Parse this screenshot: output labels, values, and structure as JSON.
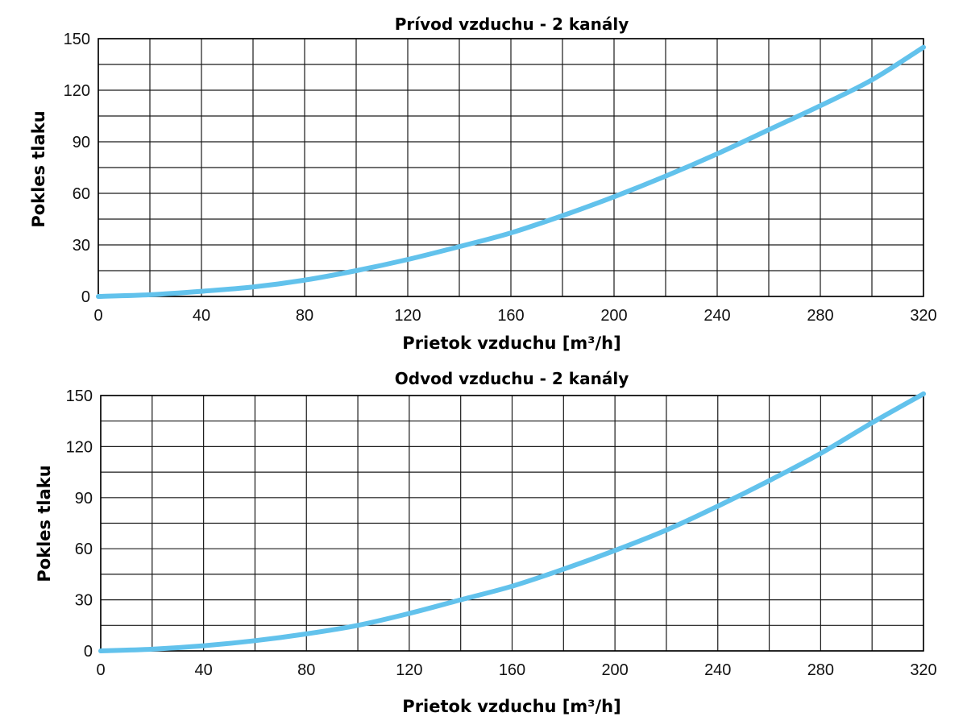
{
  "colors": {
    "curve": "#62c2ec",
    "grid": "#1a1a1a",
    "axis": "#000000"
  },
  "chart_data": [
    {
      "type": "line",
      "title": "Prívod vzduchu - 2 kanály",
      "xlabel": "Prietok vzduchu [m³/h]",
      "ylabel": "Pokles tlaku",
      "xlim": [
        0,
        320
      ],
      "ylim": [
        0,
        150
      ],
      "xticks": [
        0,
        40,
        80,
        120,
        160,
        200,
        240,
        280,
        320
      ],
      "yticks": [
        0,
        30,
        60,
        90,
        120,
        150
      ],
      "grid": true,
      "series": [
        {
          "x": [
            0,
            20,
            40,
            60,
            80,
            100,
            120,
            140,
            160,
            180,
            200,
            220,
            240,
            260,
            280,
            300,
            320
          ],
          "y": [
            0,
            1,
            3,
            5.5,
            9.5,
            15,
            21.5,
            29,
            37,
            47,
            58,
            70,
            83,
            97,
            111,
            126,
            145
          ]
        }
      ]
    },
    {
      "type": "line",
      "title": "Odvod vzduchu - 2 kanály",
      "xlabel": "Prietok vzduchu [m³/h]",
      "ylabel": "Pokles tlaku",
      "xlim": [
        0,
        320
      ],
      "ylim": [
        0,
        150
      ],
      "xticks": [
        0,
        40,
        80,
        120,
        160,
        200,
        240,
        280,
        320
      ],
      "yticks": [
        0,
        30,
        60,
        90,
        120,
        150
      ],
      "grid": true,
      "series": [
        {
          "x": [
            0,
            20,
            40,
            60,
            80,
            100,
            120,
            140,
            160,
            180,
            200,
            220,
            240,
            260,
            280,
            300,
            320
          ],
          "y": [
            0,
            1,
            3,
            6,
            10,
            15,
            22,
            30,
            38,
            48,
            59,
            71,
            85,
            100,
            116,
            134,
            151
          ]
        }
      ]
    }
  ]
}
